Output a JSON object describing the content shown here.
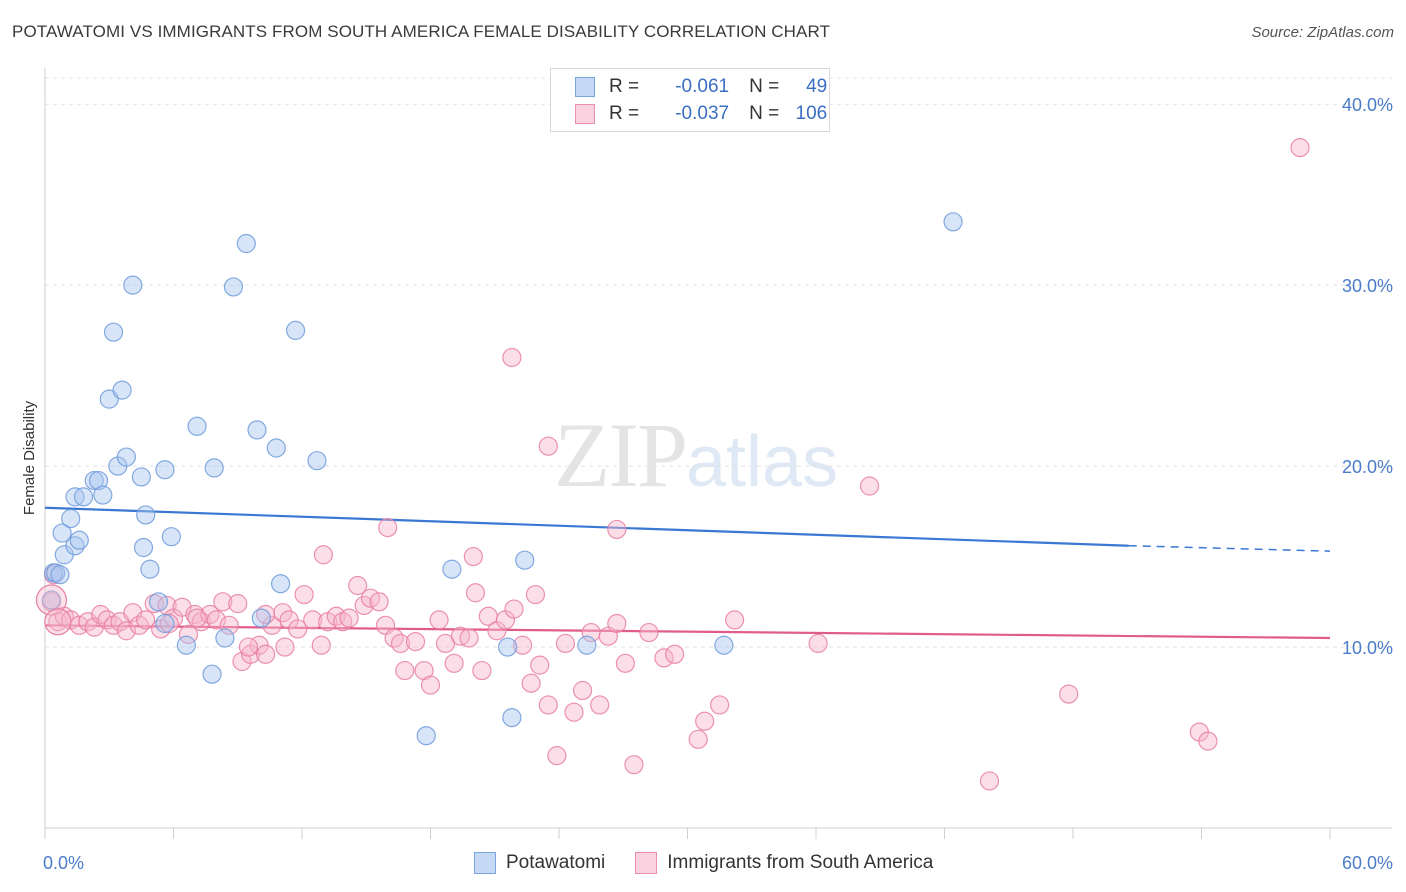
{
  "header": {
    "title": "POTAWATOMI VS IMMIGRANTS FROM SOUTH AMERICA FEMALE DISABILITY CORRELATION CHART",
    "source": "Source: ZipAtlas.com"
  },
  "watermark": {
    "zip": "ZIP",
    "atlas": "atlas"
  },
  "legend": {
    "rows": [
      {
        "r_label": "R =",
        "r_value": "-0.061",
        "n_label": "N =",
        "n_value": "49",
        "color": "#a9c6ef"
      },
      {
        "r_label": "R =",
        "r_value": "-0.037",
        "n_label": "N =",
        "n_value": "106",
        "color": "#f6b6cb"
      }
    ]
  },
  "bottom_legend": {
    "items": [
      {
        "label": "Potawatomi",
        "color": "#a9c6ef"
      },
      {
        "label": "Immigrants from South America",
        "color": "#f6b6cb"
      }
    ]
  },
  "chart_data": {
    "type": "scatter",
    "ylabel": "Female Disability",
    "xlabel": "",
    "xlim": [
      0,
      60
    ],
    "ylim": [
      0,
      42
    ],
    "x_tick_labels": [
      "0.0%",
      "60.0%"
    ],
    "y_ticks": [
      10,
      20,
      30,
      40
    ],
    "y_tick_labels": [
      "10.0%",
      "20.0%",
      "30.0%",
      "40.0%"
    ],
    "grid": "horizontal dashed",
    "legend_position": "top-center",
    "colors": {
      "blue_fill": "#a9c6ef",
      "blue_stroke": "#6f9bdc",
      "blue_line": "#3a78d4",
      "pink_fill": "#f6b6cb",
      "pink_stroke": "#e87fa3",
      "pink_line": "#e05c8a"
    },
    "series": [
      {
        "name": "Potawatomi",
        "trend": {
          "x": [
            0,
            50.6
          ],
          "y": [
            17.7,
            15.6
          ],
          "dashed_to": [
            60,
            15.3
          ]
        },
        "points": [
          [
            0.4,
            14.1
          ],
          [
            0.9,
            15.1
          ],
          [
            0.8,
            16.3
          ],
          [
            1.2,
            17.1
          ],
          [
            1.4,
            15.6
          ],
          [
            1.6,
            15.9
          ],
          [
            1.4,
            18.3
          ],
          [
            1.8,
            18.3
          ],
          [
            2.3,
            19.2
          ],
          [
            2.5,
            19.2
          ],
          [
            2.7,
            18.4
          ],
          [
            3.4,
            20.0
          ],
          [
            3.8,
            20.5
          ],
          [
            4.5,
            19.4
          ],
          [
            5.6,
            19.8
          ],
          [
            3.0,
            23.7
          ],
          [
            3.6,
            24.2
          ],
          [
            3.2,
            27.4
          ],
          [
            4.1,
            30.0
          ],
          [
            7.1,
            22.2
          ],
          [
            7.9,
            19.9
          ],
          [
            8.8,
            29.9
          ],
          [
            9.4,
            32.3
          ],
          [
            9.9,
            22.0
          ],
          [
            10.8,
            21.0
          ],
          [
            11.7,
            27.5
          ],
          [
            12.7,
            20.3
          ],
          [
            4.7,
            17.3
          ],
          [
            4.6,
            15.5
          ],
          [
            5.9,
            16.1
          ],
          [
            4.9,
            14.3
          ],
          [
            5.3,
            12.5
          ],
          [
            5.6,
            11.3
          ],
          [
            6.6,
            10.1
          ],
          [
            7.8,
            8.5
          ],
          [
            8.4,
            10.5
          ],
          [
            10.1,
            11.6
          ],
          [
            11.0,
            13.5
          ],
          [
            19.0,
            14.3
          ],
          [
            21.6,
            10.0
          ],
          [
            22.4,
            14.8
          ],
          [
            25.3,
            10.1
          ],
          [
            31.7,
            10.1
          ],
          [
            17.8,
            5.1
          ],
          [
            21.8,
            6.1
          ],
          [
            42.4,
            33.5
          ],
          [
            0.5,
            14.1
          ],
          [
            0.3,
            12.6
          ],
          [
            0.7,
            14.0
          ]
        ]
      },
      {
        "name": "Immigrants from South America",
        "trend": {
          "x": [
            0,
            60
          ],
          "y": [
            11.2,
            10.5
          ]
        },
        "points": [
          [
            0.3,
            12.5
          ],
          [
            0.4,
            14.0
          ],
          [
            0.6,
            11.4
          ],
          [
            0.9,
            11.7
          ],
          [
            1.2,
            11.5
          ],
          [
            1.6,
            11.2
          ],
          [
            2.0,
            11.4
          ],
          [
            2.3,
            11.1
          ],
          [
            2.6,
            11.8
          ],
          [
            2.9,
            11.5
          ],
          [
            3.2,
            11.2
          ],
          [
            3.5,
            11.4
          ],
          [
            3.8,
            10.9
          ],
          [
            4.1,
            11.9
          ],
          [
            4.4,
            11.2
          ],
          [
            4.7,
            11.5
          ],
          [
            5.1,
            12.4
          ],
          [
            5.4,
            11.0
          ],
          [
            5.7,
            12.3
          ],
          [
            6.0,
            11.6
          ],
          [
            6.4,
            12.2
          ],
          [
            6.7,
            10.7
          ],
          [
            7.0,
            11.8
          ],
          [
            7.3,
            11.4
          ],
          [
            7.7,
            11.8
          ],
          [
            8.0,
            11.5
          ],
          [
            8.3,
            12.5
          ],
          [
            8.6,
            11.2
          ],
          [
            9.0,
            12.4
          ],
          [
            9.2,
            9.2
          ],
          [
            9.6,
            9.6
          ],
          [
            10.0,
            10.1
          ],
          [
            10.3,
            9.6
          ],
          [
            10.6,
            11.2
          ],
          [
            11.1,
            11.9
          ],
          [
            11.4,
            11.5
          ],
          [
            11.8,
            11.0
          ],
          [
            12.1,
            12.9
          ],
          [
            12.5,
            11.5
          ],
          [
            12.9,
            10.1
          ],
          [
            13.2,
            11.4
          ],
          [
            13.6,
            11.7
          ],
          [
            13.9,
            11.4
          ],
          [
            14.2,
            11.6
          ],
          [
            14.6,
            13.4
          ],
          [
            14.9,
            12.3
          ],
          [
            15.2,
            12.7
          ],
          [
            15.6,
            12.5
          ],
          [
            15.9,
            11.2
          ],
          [
            16.3,
            10.5
          ],
          [
            16.6,
            10.2
          ],
          [
            16.8,
            8.7
          ],
          [
            17.3,
            10.3
          ],
          [
            17.7,
            8.7
          ],
          [
            18.0,
            7.9
          ],
          [
            18.4,
            11.5
          ],
          [
            18.7,
            10.2
          ],
          [
            19.1,
            9.1
          ],
          [
            19.4,
            10.6
          ],
          [
            19.8,
            10.5
          ],
          [
            20.1,
            13.0
          ],
          [
            20.4,
            8.7
          ],
          [
            20.7,
            11.7
          ],
          [
            21.1,
            10.9
          ],
          [
            21.5,
            11.5
          ],
          [
            21.9,
            12.1
          ],
          [
            22.3,
            10.1
          ],
          [
            22.7,
            8.0
          ],
          [
            23.1,
            9.0
          ],
          [
            23.5,
            6.8
          ],
          [
            23.9,
            4.0
          ],
          [
            24.3,
            10.2
          ],
          [
            24.7,
            6.4
          ],
          [
            25.1,
            7.6
          ],
          [
            25.5,
            10.8
          ],
          [
            25.9,
            6.8
          ],
          [
            26.3,
            10.6
          ],
          [
            26.7,
            11.3
          ],
          [
            27.1,
            9.1
          ],
          [
            27.5,
            3.5
          ],
          [
            28.2,
            10.8
          ],
          [
            28.9,
            9.4
          ],
          [
            29.4,
            9.6
          ],
          [
            30.5,
            4.9
          ],
          [
            30.8,
            5.9
          ],
          [
            31.5,
            6.8
          ],
          [
            32.2,
            11.5
          ],
          [
            36.1,
            10.2
          ],
          [
            38.5,
            18.9
          ],
          [
            44.1,
            2.6
          ],
          [
            47.8,
            7.4
          ],
          [
            53.9,
            5.3
          ],
          [
            54.3,
            4.8
          ],
          [
            58.6,
            37.6
          ],
          [
            21.8,
            26.0
          ],
          [
            23.5,
            21.1
          ],
          [
            16.0,
            16.6
          ],
          [
            13.0,
            15.1
          ],
          [
            20.0,
            15.0
          ],
          [
            26.7,
            16.5
          ],
          [
            10.3,
            11.8
          ],
          [
            11.2,
            10.0
          ],
          [
            7.1,
            11.6
          ],
          [
            9.5,
            10.0
          ],
          [
            5.8,
            11.3
          ],
          [
            22.9,
            12.9
          ]
        ]
      }
    ]
  }
}
